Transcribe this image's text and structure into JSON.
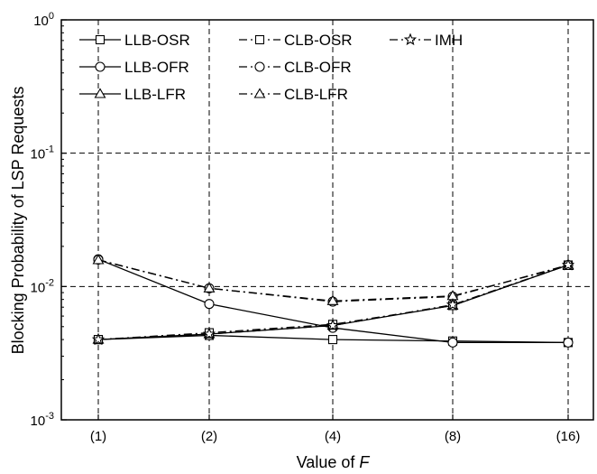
{
  "chart_data": {
    "type": "line",
    "title": "",
    "xlabel": "Value of ",
    "xlabel_italic": "F",
    "ylabel": "Blocking Probability of LSP Requests",
    "y_scale": "log",
    "ylim": [
      0.001,
      1
    ],
    "y_ticks": [
      {
        "value": 0.001,
        "mant": "10",
        "exp": "-3"
      },
      {
        "value": 0.01,
        "mant": "10",
        "exp": "-2"
      },
      {
        "value": 0.1,
        "mant": "10",
        "exp": "-1"
      },
      {
        "value": 1,
        "mant": "10",
        "exp": "0"
      }
    ],
    "categories": [
      "(1)",
      "(2)",
      "(4)",
      "(8)",
      "(16)"
    ],
    "grid": true,
    "legend_position": "top-left",
    "series": [
      {
        "name": "LLB-OSR",
        "marker": "square",
        "dash": "solid",
        "values": [
          0.004,
          0.0043,
          0.004,
          0.0039,
          0.0038
        ]
      },
      {
        "name": "LLB-OFR",
        "marker": "circle",
        "dash": "solid",
        "values": [
          0.016,
          0.0074,
          0.0049,
          0.0038,
          0.0038
        ]
      },
      {
        "name": "LLB-LFR",
        "marker": "triangle",
        "dash": "solid",
        "values": [
          0.004,
          0.0044,
          0.0051,
          0.0072,
          0.0145
        ]
      },
      {
        "name": "CLB-OSR",
        "marker": "square",
        "dash": "dashdot",
        "values": [
          0.004,
          0.0045,
          0.0052,
          0.0072,
          0.0145
        ]
      },
      {
        "name": "CLB-OFR",
        "marker": "circle",
        "dash": "dashdot",
        "values": [
          0.0159,
          0.0097,
          0.0077,
          0.0084,
          0.0145
        ]
      },
      {
        "name": "CLB-LFR",
        "marker": "triangle",
        "dash": "dashdot",
        "values": [
          0.0158,
          0.0097,
          0.0078,
          0.0085,
          0.0143
        ]
      },
      {
        "name": "IMH",
        "marker": "star",
        "dash": "dashdot",
        "values": [
          0.004,
          0.0044,
          0.0051,
          0.0073,
          0.0145
        ]
      }
    ]
  }
}
